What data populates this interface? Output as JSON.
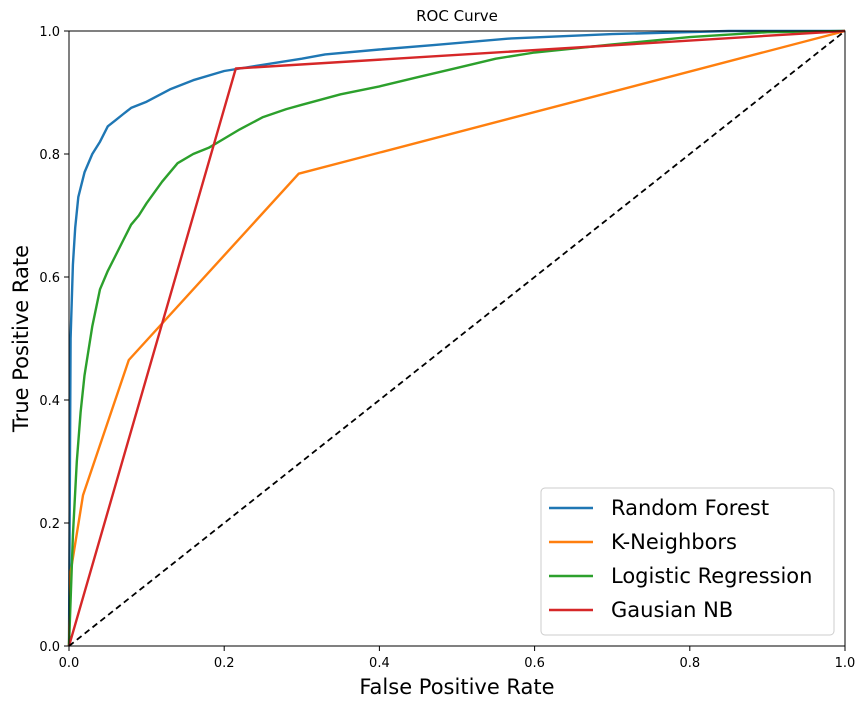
{
  "chart_data": {
    "type": "line",
    "title": "ROC Curve",
    "xlabel": "False Positive Rate",
    "ylabel": "True Positive Rate",
    "xlim": [
      0,
      1
    ],
    "ylim": [
      0,
      1
    ],
    "xticks": [
      "0.0",
      "0.2",
      "0.4",
      "0.6",
      "0.8",
      "1.0"
    ],
    "yticks": [
      "0.0",
      "0.2",
      "0.4",
      "0.6",
      "0.8",
      "1.0"
    ],
    "grid": false,
    "legend_position": "bottom-right",
    "series": [
      {
        "name": "Random Forest",
        "color": "#1f77b4",
        "x": [
          0,
          0.002,
          0.005,
          0.008,
          0.012,
          0.02,
          0.03,
          0.04,
          0.05,
          0.06,
          0.07,
          0.08,
          0.1,
          0.13,
          0.16,
          0.2,
          0.25,
          0.3,
          0.33,
          0.4,
          0.47,
          0.57,
          0.7,
          0.85,
          1.0
        ],
        "y": [
          0,
          0.5,
          0.62,
          0.68,
          0.73,
          0.77,
          0.8,
          0.82,
          0.845,
          0.855,
          0.865,
          0.875,
          0.885,
          0.905,
          0.92,
          0.935,
          0.945,
          0.955,
          0.962,
          0.97,
          0.977,
          0.988,
          0.995,
          1.0,
          1.0
        ]
      },
      {
        "name": "K-Neighbors",
        "color": "#ff7f0e",
        "x": [
          0,
          0.002,
          0.018,
          0.077,
          0.296,
          1.0
        ],
        "y": [
          0,
          0.12,
          0.245,
          0.465,
          0.768,
          1.0
        ]
      },
      {
        "name": "Logistic Regression",
        "color": "#2ca02c",
        "x": [
          0,
          0.005,
          0.01,
          0.015,
          0.02,
          0.03,
          0.04,
          0.05,
          0.06,
          0.07,
          0.08,
          0.09,
          0.1,
          0.12,
          0.14,
          0.16,
          0.18,
          0.2,
          0.22,
          0.25,
          0.28,
          0.3,
          0.35,
          0.4,
          0.45,
          0.5,
          0.55,
          0.6,
          0.7,
          0.8,
          0.9,
          1.0
        ],
        "y": [
          0,
          0.18,
          0.3,
          0.38,
          0.44,
          0.52,
          0.58,
          0.61,
          0.635,
          0.66,
          0.685,
          0.7,
          0.72,
          0.755,
          0.785,
          0.8,
          0.81,
          0.825,
          0.84,
          0.86,
          0.873,
          0.88,
          0.897,
          0.91,
          0.925,
          0.94,
          0.955,
          0.965,
          0.978,
          0.99,
          0.998,
          1.0
        ]
      },
      {
        "name": "Gausian NB",
        "color": "#d62728",
        "x": [
          0,
          0.215,
          1.0
        ],
        "y": [
          0,
          0.939,
          1.0
        ]
      },
      {
        "name": "",
        "color": "#000000",
        "dashed": true,
        "x": [
          0,
          1
        ],
        "y": [
          0,
          1
        ]
      }
    ]
  }
}
